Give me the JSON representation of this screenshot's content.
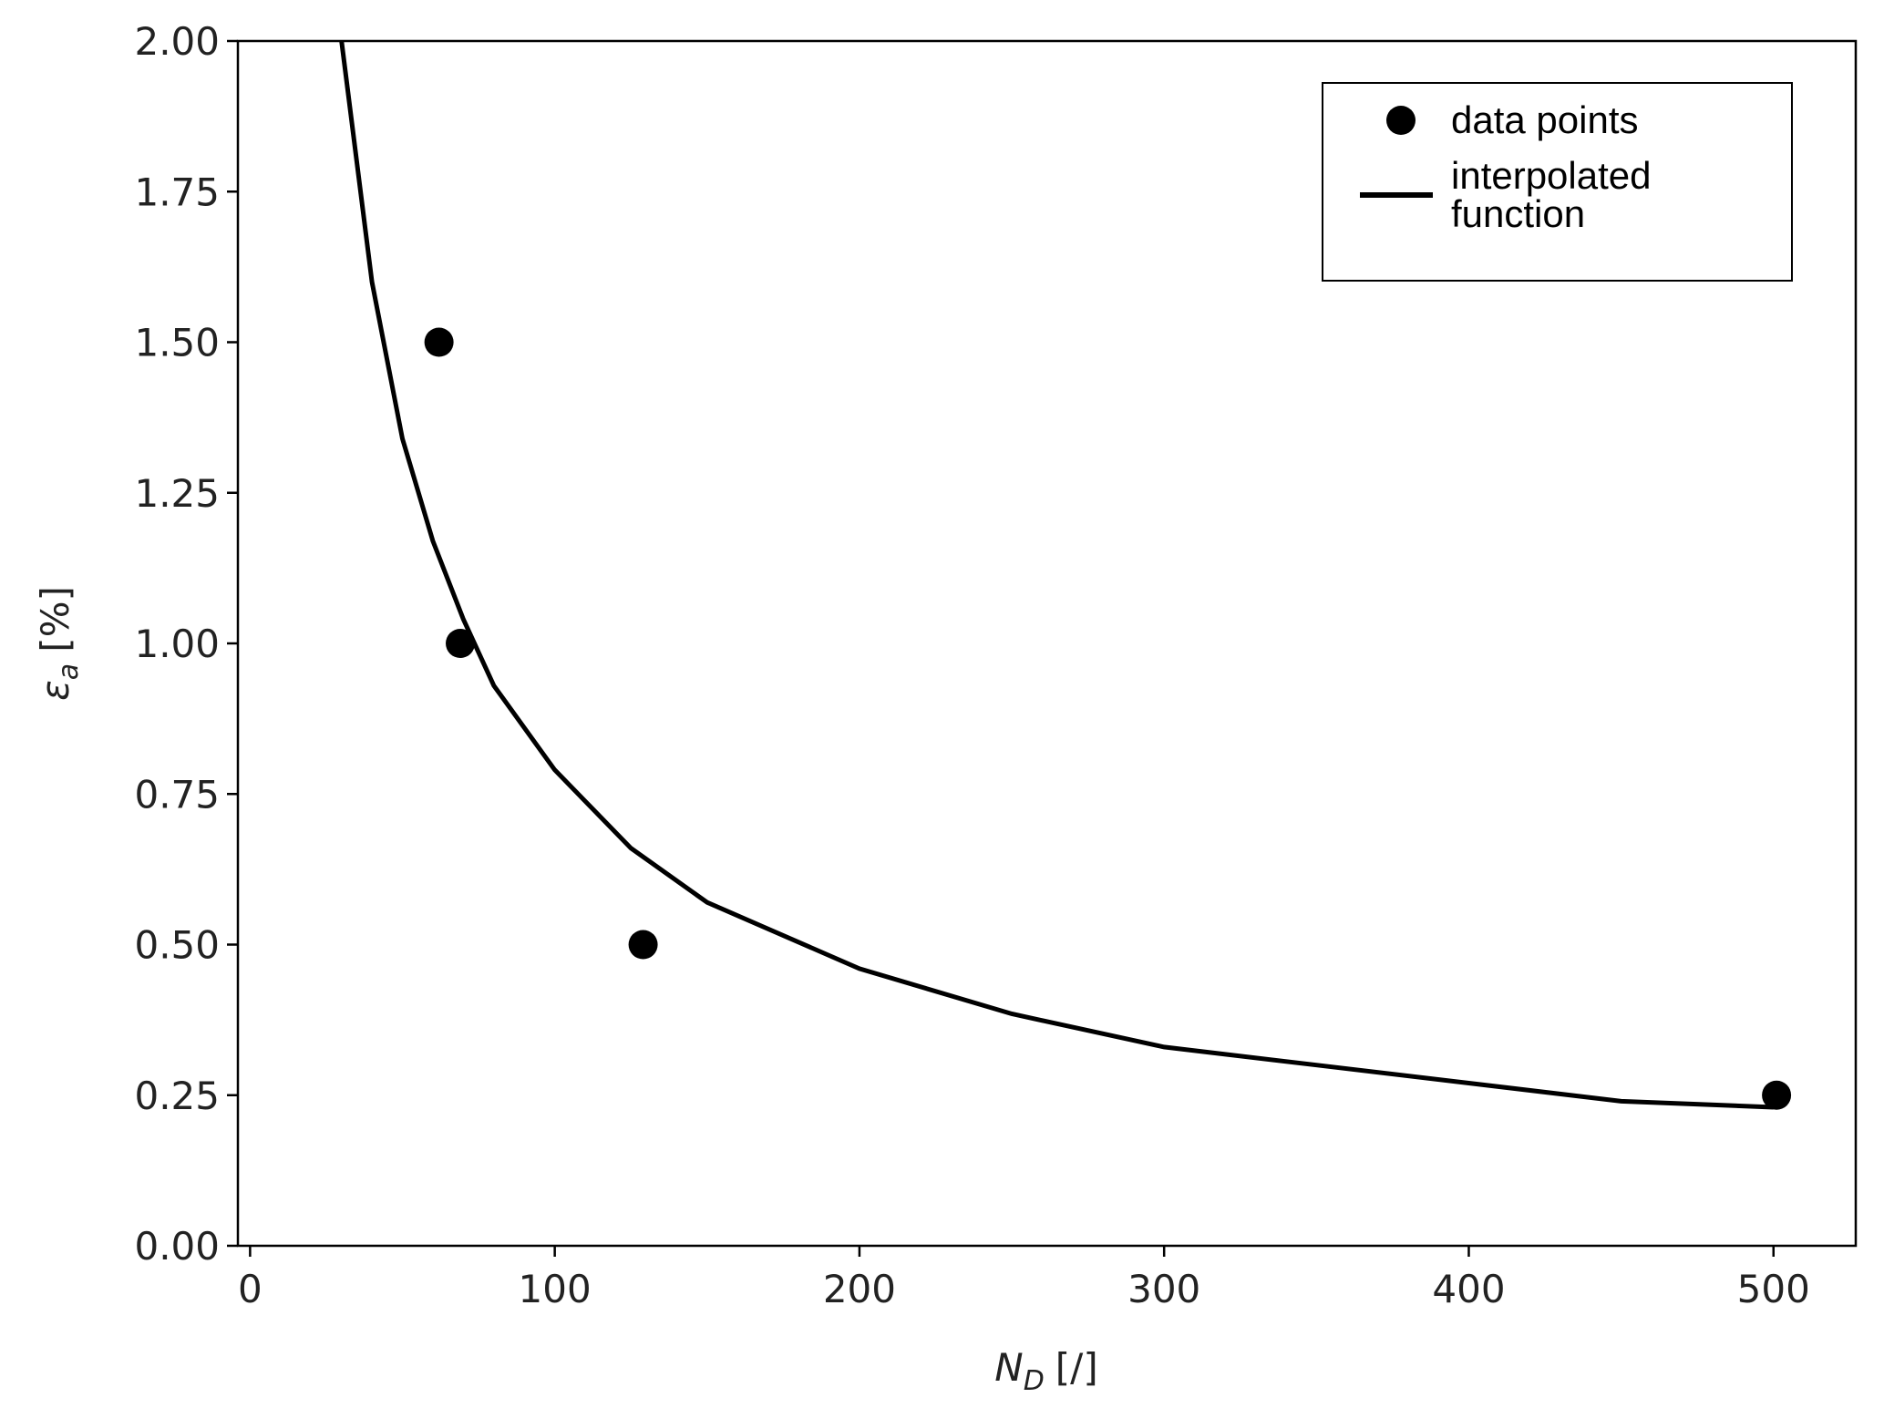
{
  "chart_data": {
    "type": "scatter",
    "xlabel": {
      "symbol": "N",
      "subscript": "D",
      "unit": "[/]"
    },
    "ylabel": {
      "symbol": "ε",
      "subscript": "a",
      "unit": "[%]"
    },
    "xlim": [
      -4,
      527
    ],
    "xticks": [
      0,
      100,
      200,
      300,
      400,
      500
    ],
    "ylim": [
      0,
      2
    ],
    "yticks": [
      {
        "value": 0,
        "label": "0.00"
      },
      {
        "value": 0.25,
        "label": "0.25"
      },
      {
        "value": 0.5,
        "label": "0.50"
      },
      {
        "value": 0.75,
        "label": "0.75"
      },
      {
        "value": 1,
        "label": "1.00"
      },
      {
        "value": 1.25,
        "label": "1.25"
      },
      {
        "value": 1.5,
        "label": "1.50"
      },
      {
        "value": 1.75,
        "label": "1.75"
      },
      {
        "value": 2,
        "label": "2.00"
      }
    ],
    "grid": false,
    "legend": "upper right",
    "series": [
      {
        "name": "data points",
        "type": "scatter",
        "color": "#000000",
        "x": [
          62,
          69,
          129,
          501
        ],
        "values": [
          1.5,
          1.0,
          0.5,
          0.25
        ]
      },
      {
        "name": "interpolated function",
        "type": "line",
        "color": "#000000",
        "x": [
          30,
          40,
          50,
          60,
          70,
          80,
          100,
          125,
          150,
          200,
          250,
          300,
          350,
          400,
          450,
          500
        ],
        "values": [
          2.0,
          1.6,
          1.34,
          1.17,
          1.04,
          0.93,
          0.79,
          0.66,
          0.57,
          0.46,
          0.385,
          0.33,
          0.3,
          0.27,
          0.24,
          0.23
        ]
      }
    ]
  }
}
